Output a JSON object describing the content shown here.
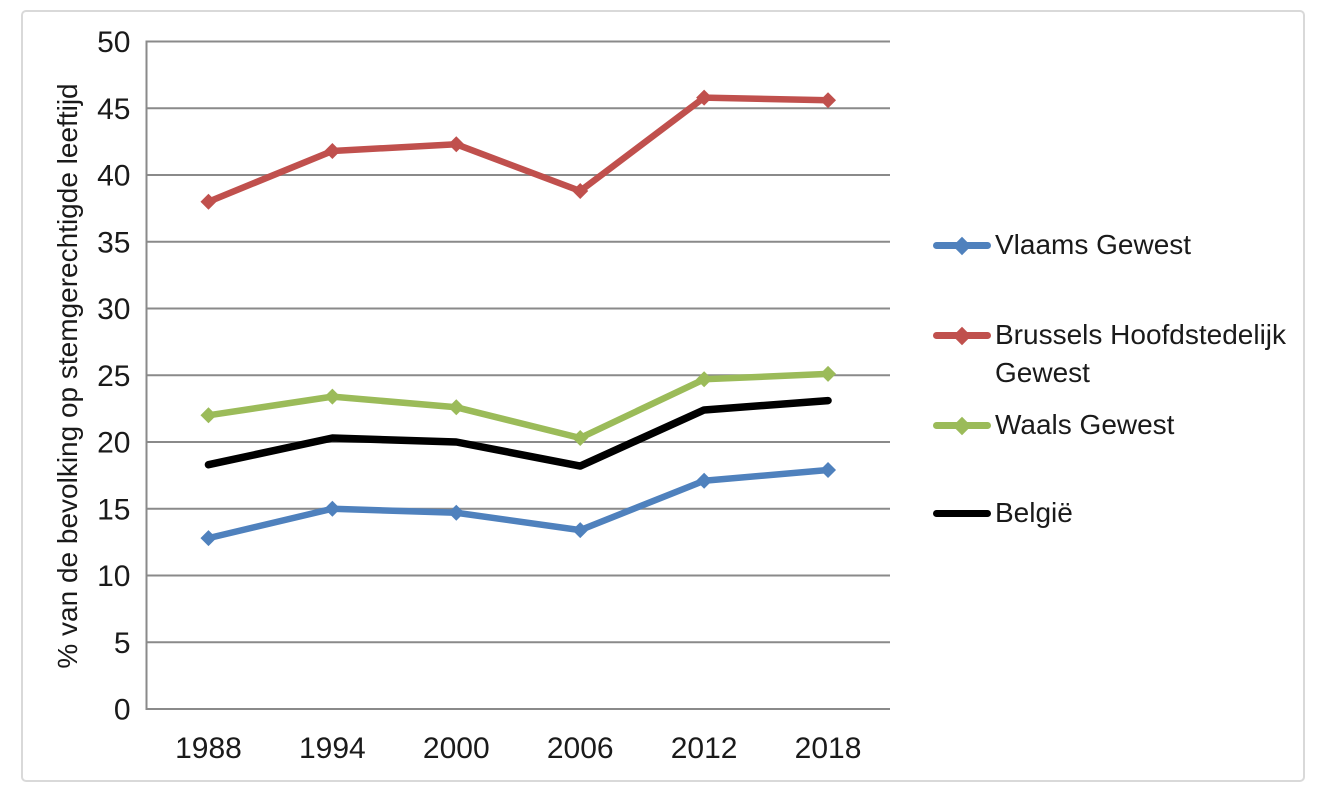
{
  "figure": {
    "background": "#ffffff",
    "border_color": "#d9d9d9"
  },
  "chart_data": {
    "type": "line",
    "title": "",
    "xlabel": "",
    "ylabel": "% van de bevolking op stemgerechtigde leeftijd",
    "categories": [
      "1988",
      "1994",
      "2000",
      "2006",
      "2012",
      "2018"
    ],
    "ylim": [
      0,
      50
    ],
    "yticks": [
      0,
      5,
      10,
      15,
      20,
      25,
      30,
      35,
      40,
      45,
      50
    ],
    "grid": "horizontal",
    "axis_color": "#8a8a8a",
    "tick_label_color": "#1a1a1a",
    "legend_position": "right",
    "series": [
      {
        "name": "Vlaams Gewest",
        "color": "#4F81BD",
        "marker": "diamond",
        "values": [
          12.8,
          15.0,
          14.7,
          13.4,
          17.1,
          17.9
        ]
      },
      {
        "name": "Brussels Hoofdstedelijk Gewest",
        "color": "#C0504D",
        "marker": "diamond",
        "values": [
          38.0,
          41.8,
          42.3,
          38.8,
          45.8,
          45.6
        ]
      },
      {
        "name": "Waals Gewest",
        "color": "#9BBB59",
        "marker": "diamond",
        "values": [
          22.0,
          23.4,
          22.6,
          20.3,
          24.7,
          25.1
        ]
      },
      {
        "name": "België",
        "color": "#000000",
        "marker": "none",
        "values": [
          18.3,
          20.3,
          20.0,
          18.2,
          22.4,
          23.1
        ]
      }
    ]
  }
}
